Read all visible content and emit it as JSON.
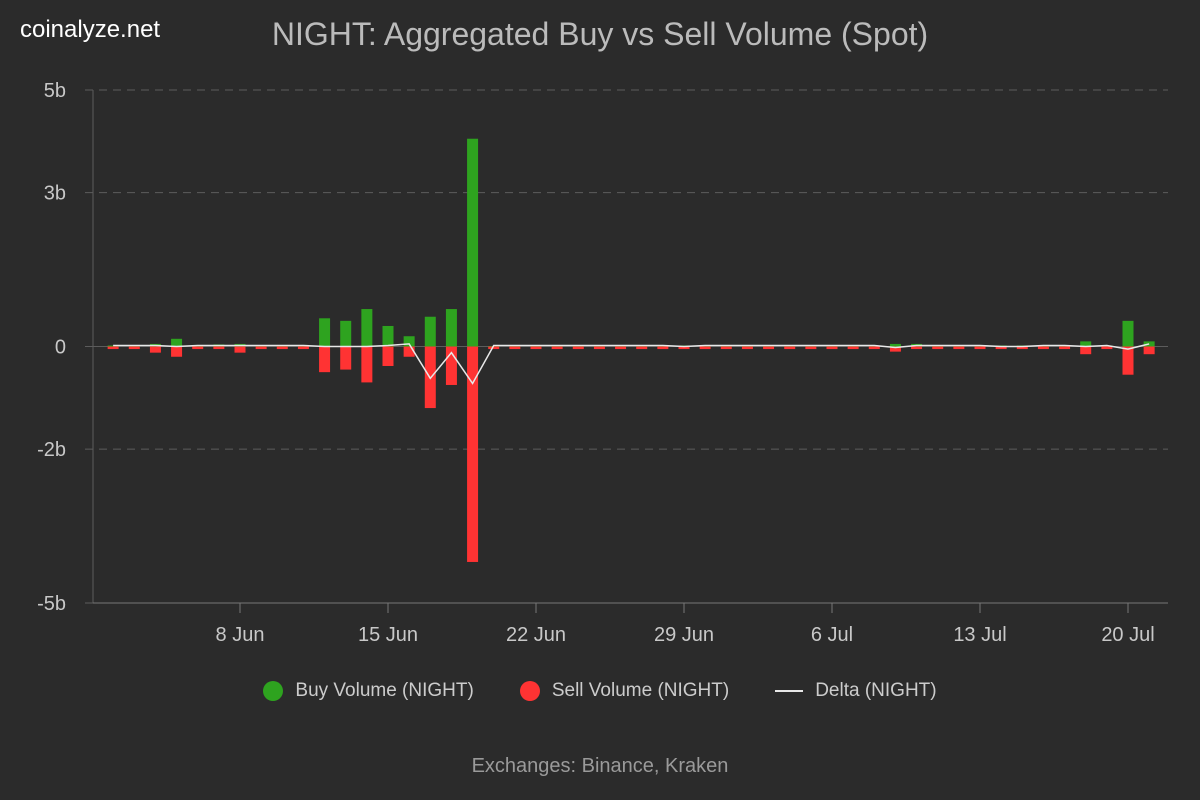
{
  "brand": "coinalyze.net",
  "footer": "Exchanges: Binance, Kraken",
  "colors": {
    "background": "#2b2b2b",
    "buy": "#2ea31f",
    "sell": "#ff3333",
    "delta": "#e8e8e8",
    "grid": "#5c5c5c",
    "axis_text": "#c8c8c8"
  },
  "chart_data": {
    "type": "bar",
    "title": "NIGHT: Aggregated Buy vs Sell Volume (Spot)",
    "xlabel": "",
    "ylabel": "",
    "ylim": [
      -5,
      5
    ],
    "y_ticks": [
      {
        "value": 5,
        "label": "5b"
      },
      {
        "value": 3,
        "label": "3b"
      },
      {
        "value": 0,
        "label": "0"
      },
      {
        "value": -2,
        "label": "-2b"
      },
      {
        "value": -5,
        "label": "-5b"
      }
    ],
    "x_ticks": [
      {
        "day": 8,
        "label": "8 Jun"
      },
      {
        "day": 15,
        "label": "15 Jun"
      },
      {
        "day": 22,
        "label": "22 Jun"
      },
      {
        "day": 29,
        "label": "29 Jun"
      },
      {
        "day": 36,
        "label": "6 Jul"
      },
      {
        "day": 43,
        "label": "13 Jul"
      },
      {
        "day": 50,
        "label": "20 Jul"
      }
    ],
    "x": [
      2,
      3,
      4,
      5,
      6,
      7,
      8,
      9,
      10,
      11,
      12,
      13,
      14,
      15,
      16,
      17,
      18,
      19,
      20,
      21,
      22,
      23,
      24,
      25,
      26,
      27,
      28,
      29,
      30,
      31,
      32,
      33,
      34,
      35,
      36,
      37,
      38,
      39,
      40,
      41,
      42,
      43,
      44,
      45,
      46,
      47,
      48,
      49,
      50,
      51
    ],
    "series": [
      {
        "name": "Buy Volume (NIGHT)",
        "values": [
          0.02,
          0.02,
          0.05,
          0.15,
          0.03,
          0.04,
          0.05,
          0.02,
          0.03,
          0.03,
          0.55,
          0.5,
          0.73,
          0.4,
          0.2,
          0.58,
          0.73,
          4.05,
          0.01,
          0.02,
          0.02,
          0.02,
          0.02,
          0.02,
          0.02,
          0.02,
          0.02,
          0.02,
          0.02,
          0.02,
          0.02,
          0.02,
          0.02,
          0.02,
          0.02,
          0.02,
          0.02,
          0.05,
          0.05,
          0.02,
          0.02,
          0.02,
          0.02,
          0.02,
          0.02,
          0.02,
          0.1,
          0.02,
          0.5,
          0.1
        ]
      },
      {
        "name": "Sell Volume (NIGHT)",
        "values": [
          -0.05,
          -0.05,
          -0.12,
          -0.2,
          -0.05,
          -0.05,
          -0.12,
          -0.05,
          -0.05,
          -0.05,
          -0.5,
          -0.45,
          -0.7,
          -0.38,
          -0.2,
          -1.2,
          -0.75,
          -4.2,
          -0.05,
          -0.05,
          -0.05,
          -0.05,
          -0.05,
          -0.05,
          -0.05,
          -0.05,
          -0.05,
          -0.05,
          -0.05,
          -0.05,
          -0.05,
          -0.05,
          -0.05,
          -0.05,
          -0.05,
          -0.05,
          -0.05,
          -0.1,
          -0.05,
          -0.05,
          -0.05,
          -0.05,
          -0.05,
          -0.05,
          -0.05,
          -0.05,
          -0.15,
          -0.05,
          -0.55,
          -0.15
        ]
      },
      {
        "name": "Delta (NIGHT)",
        "type": "line",
        "values": [
          0.02,
          0.02,
          0.02,
          0.0,
          0.02,
          0.02,
          0.02,
          0.02,
          0.02,
          0.02,
          0.0,
          0.0,
          0.0,
          0.02,
          0.05,
          -0.62,
          -0.12,
          -0.72,
          0.02,
          0.02,
          0.02,
          0.02,
          0.02,
          0.02,
          0.02,
          0.02,
          0.02,
          0.0,
          0.02,
          0.02,
          0.02,
          0.02,
          0.02,
          0.02,
          0.02,
          0.02,
          0.02,
          -0.02,
          0.02,
          0.02,
          0.02,
          0.02,
          0.0,
          0.0,
          0.02,
          0.02,
          0.0,
          0.02,
          -0.05,
          0.05
        ]
      }
    ],
    "legend_position": "bottom",
    "grid": true
  }
}
